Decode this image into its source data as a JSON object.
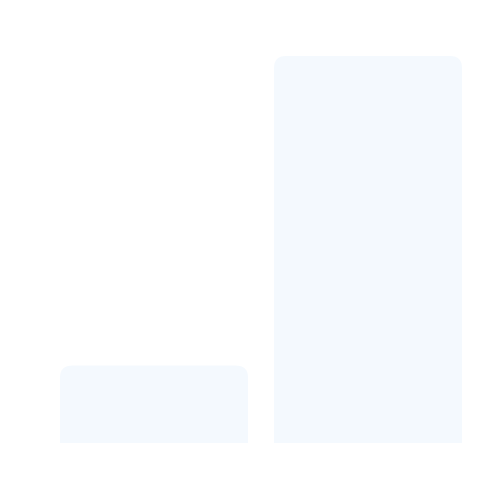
{
  "chart_data": {
    "type": "bar",
    "title": "",
    "xlabel": "",
    "ylabel": "",
    "categories": [
      "",
      ""
    ],
    "series": [
      {
        "values": [
          0.2,
          1.0
        ]
      }
    ],
    "ylim": [
      0,
      1
    ],
    "grid": false,
    "legend": "none",
    "colors": {
      "bar": "#f4f9fe",
      "background": "#ffffff"
    }
  }
}
